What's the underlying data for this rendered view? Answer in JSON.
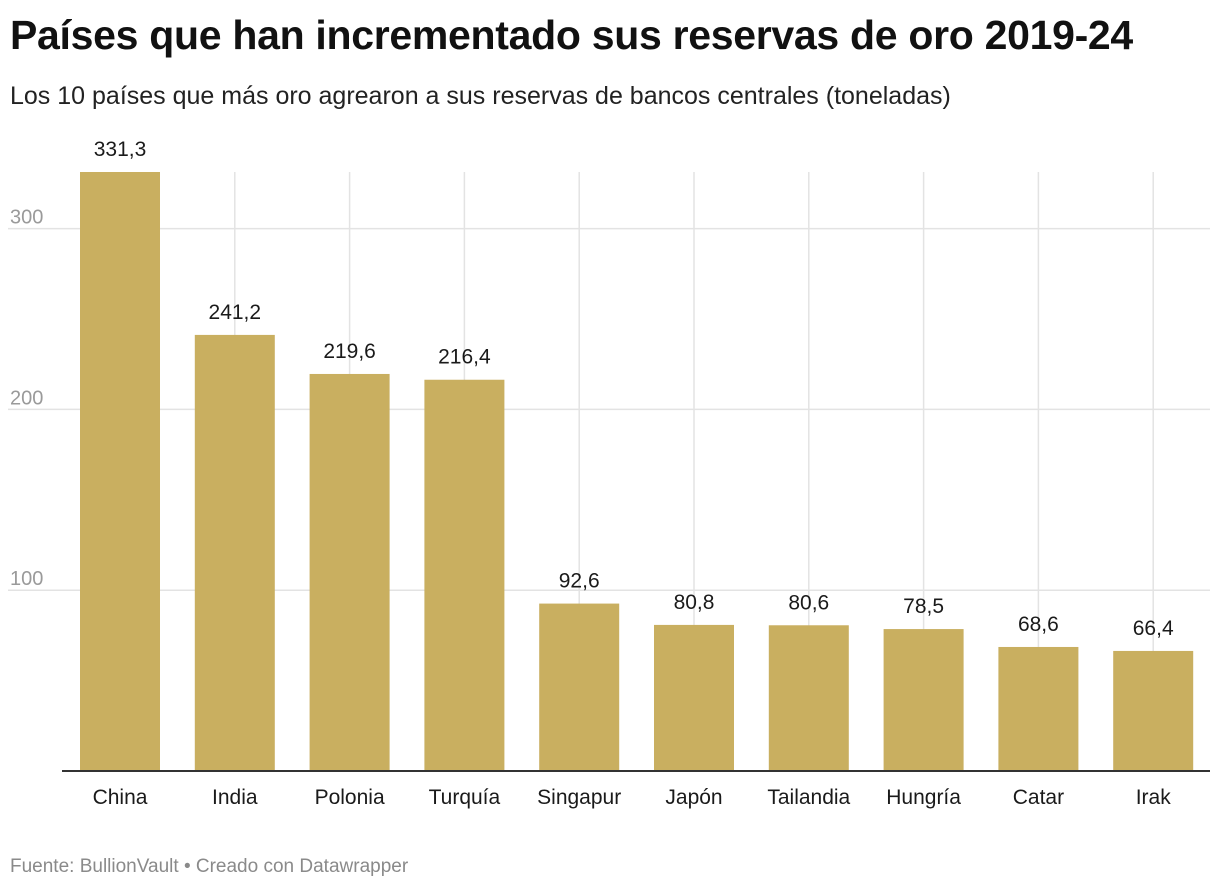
{
  "header": {
    "title": "Países que han incrementado sus reservas de oro 2019-24",
    "subtitle": "Los 10 países que más oro agrearon a sus reservas de bancos centrales (toneladas)"
  },
  "footer": {
    "source": "Fuente: BullionVault",
    "separator": "•",
    "credit": "Creado con Datawrapper"
  },
  "colors": {
    "bar": "#c9af60",
    "grid": "#e3e3e3",
    "axis": "#333333",
    "tick_label": "#9a9a9a",
    "value_label": "#1a1a1a"
  },
  "chart_data": {
    "type": "bar",
    "title": "Países que han incrementado sus reservas de oro 2019-24",
    "xlabel": "",
    "ylabel": "",
    "categories": [
      "China",
      "India",
      "Polonia",
      "Turquía",
      "Singapur",
      "Japón",
      "Tailandia",
      "Hungría",
      "Catar",
      "Irak"
    ],
    "values": [
      331.3,
      241.2,
      219.6,
      216.4,
      92.6,
      80.8,
      80.6,
      78.5,
      68.6,
      66.4
    ],
    "value_labels": [
      "331,3",
      "241,2",
      "219,6",
      "216,4",
      "92,6",
      "80,8",
      "80,6",
      "78,5",
      "68,6",
      "66,4"
    ],
    "yticks": [
      100,
      200,
      300
    ],
    "ytick_labels": [
      "100",
      "200",
      "300"
    ],
    "ylim": [
      0,
      331.3
    ],
    "grid": true,
    "legend": "none"
  }
}
